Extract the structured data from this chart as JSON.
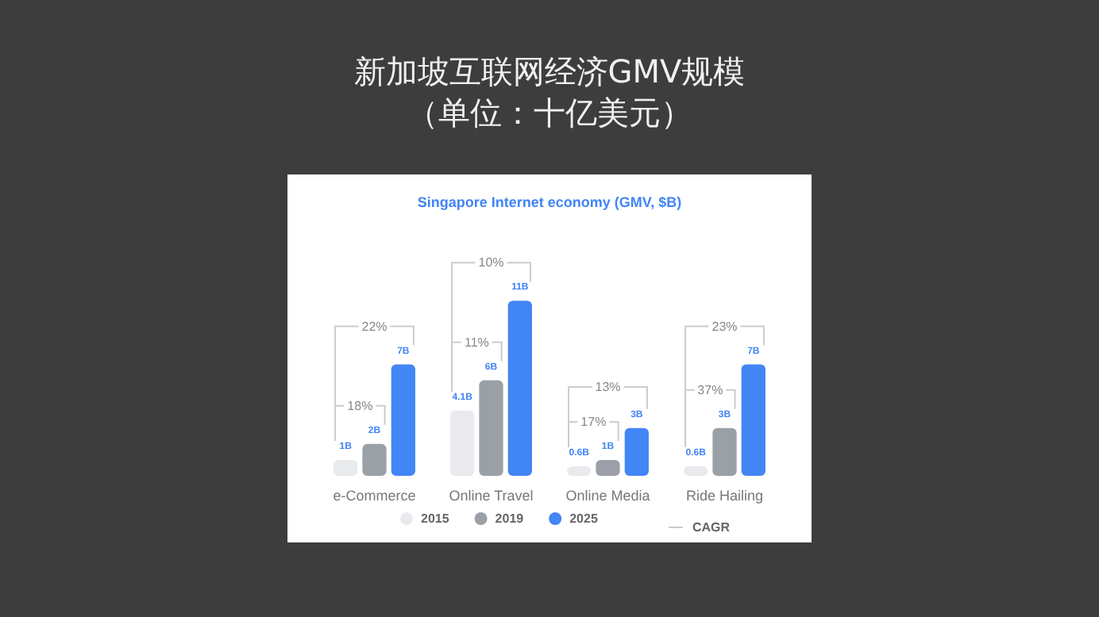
{
  "chart_data": {
    "type": "bar",
    "title": "新加坡互联网经济GMV规模",
    "subtitle": "（单位：十亿美元）",
    "categories": [
      "e-Commerce",
      "Online Travel",
      "Online Media",
      "Ride Hailing"
    ],
    "series": [
      {
        "name": "2015",
        "color": "#e8eaed",
        "values": [
          1,
          4.1,
          0.6,
          0.6
        ],
        "value_labels": [
          "1B",
          "4.1B",
          "0.6B",
          "0.6B"
        ]
      },
      {
        "name": "2019",
        "color": "#9aa0a6",
        "values": [
          2,
          6,
          1,
          3
        ],
        "value_labels": [
          "2B",
          "6B",
          "1B",
          "3B"
        ]
      },
      {
        "name": "2025",
        "color": "#4285f4",
        "values": [
          7,
          11,
          3,
          7
        ],
        "value_labels": [
          "7B",
          "11B",
          "3B",
          "7B"
        ]
      }
    ],
    "annotations": [
      "Singapore Internet economy (GMV, $B)",
      "CAGR",
      "18%",
      "22%",
      "11%",
      "10%",
      "17%",
      "13%",
      "37%",
      "23%"
    ],
    "legend": "bottom"
  }
}
